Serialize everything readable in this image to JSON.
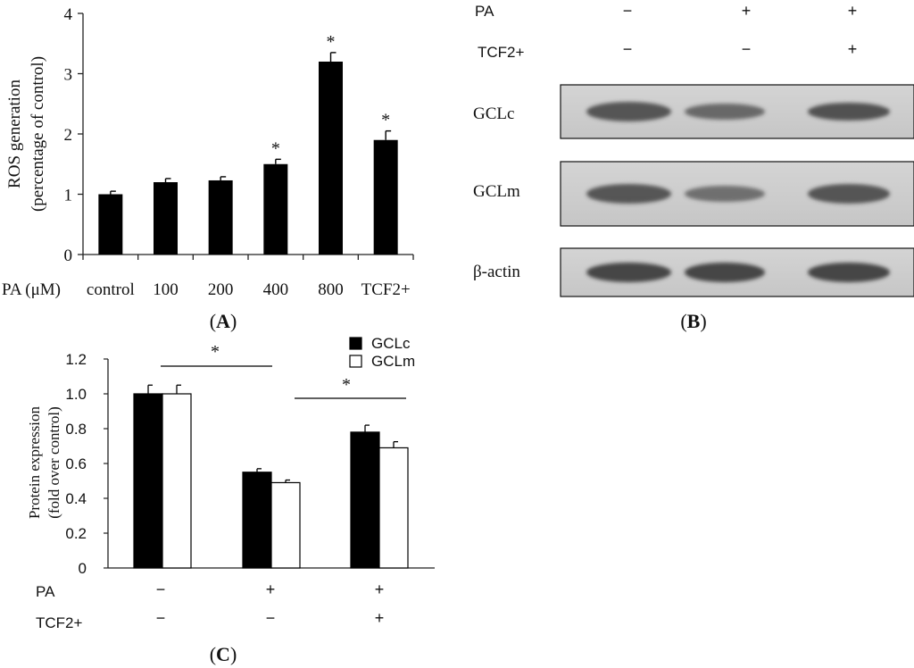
{
  "panel_a": {
    "label": "A",
    "ylabel_line1": "ROS generation",
    "ylabel_line2": "(percentage of control)",
    "x_prefix": "PA (μM)",
    "star": "*"
  },
  "panel_b": {
    "label": "B",
    "row_labels": {
      "pa": "PA",
      "tcf2": "TCF2+"
    },
    "pa_signs": [
      "−",
      "+",
      "+"
    ],
    "tcf2_signs": [
      "−",
      "−",
      "+"
    ],
    "bands": [
      "GCLc",
      "GCLm",
      "β-actin"
    ]
  },
  "panel_c": {
    "label": "C",
    "ylabel_line1": "Protein expression",
    "ylabel_line2": "(fold over control)",
    "row_labels": {
      "pa": "PA",
      "tcf2": "TCF2+"
    },
    "pa_signs": [
      "−",
      "+",
      "+"
    ],
    "tcf2_signs": [
      "−",
      "−",
      "+"
    ],
    "star": "*"
  },
  "chart_data": [
    {
      "type": "bar",
      "panel": "A",
      "categories": [
        "control",
        "100",
        "200",
        "400",
        "800",
        "TCF2+"
      ],
      "values": [
        1.0,
        1.2,
        1.23,
        1.5,
        3.2,
        1.9
      ],
      "errors": [
        0.05,
        0.06,
        0.06,
        0.08,
        0.15,
        0.15
      ],
      "significant": [
        false,
        false,
        false,
        true,
        true,
        true
      ],
      "ylabel": "ROS generation (percentage of control)",
      "xlabel": "PA (μM)",
      "ylim": [
        0,
        4
      ],
      "yticks": [
        "0",
        "1",
        "2",
        "3",
        "4"
      ],
      "colors": {
        "bar": "#000000"
      }
    },
    {
      "type": "bar",
      "panel": "C",
      "categories": [
        "PA − / TCF2+ −",
        "PA + / TCF2+ −",
        "PA + / TCF2+ +"
      ],
      "series": [
        {
          "name": "GCLc",
          "values": [
            1.0,
            0.55,
            0.78
          ],
          "errors": [
            0.05,
            0.02,
            0.04
          ],
          "color": "#000000"
        },
        {
          "name": "GCLm",
          "values": [
            1.0,
            0.49,
            0.69
          ],
          "errors": [
            0.05,
            0.015,
            0.035
          ],
          "color": "#ffffff"
        }
      ],
      "ylabel": "Protein expression (fold over control)",
      "ylim": [
        0,
        1.2
      ],
      "yticks": [
        "0",
        "0.2",
        "0.4",
        "0.6",
        "0.8",
        "1.0",
        "1.2"
      ],
      "legend": "top-right"
    }
  ]
}
